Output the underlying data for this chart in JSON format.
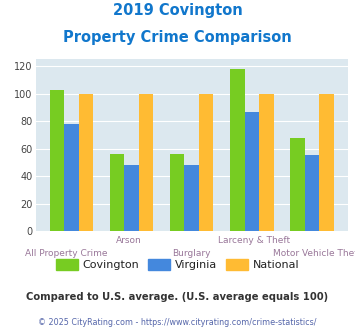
{
  "title_line1": "2019 Covington",
  "title_line2": "Property Crime Comparison",
  "cat_labels_line1": [
    "",
    "Arson",
    "",
    "Larceny & Theft",
    ""
  ],
  "cat_labels_line2": [
    "All Property Crime",
    "",
    "Burglary",
    "",
    "Motor Vehicle Theft"
  ],
  "covington": [
    103,
    56,
    56,
    118,
    68
  ],
  "virginia": [
    78,
    48,
    48,
    87,
    55
  ],
  "national": [
    100,
    100,
    100,
    100,
    100
  ],
  "colors": {
    "covington": "#77cc22",
    "virginia": "#4488dd",
    "national": "#ffbb33"
  },
  "ylim": [
    0,
    125
  ],
  "yticks": [
    0,
    20,
    40,
    60,
    80,
    100,
    120
  ],
  "plot_bg": "#dce8ef",
  "title_color": "#1177cc",
  "xlabel_color": "#997799",
  "legend_labels": [
    "Covington",
    "Virginia",
    "National"
  ],
  "note_text": "Compared to U.S. average. (U.S. average equals 100)",
  "footer_text": "© 2025 CityRating.com - https://www.cityrating.com/crime-statistics/",
  "note_color": "#333333",
  "footer_color": "#5566aa"
}
